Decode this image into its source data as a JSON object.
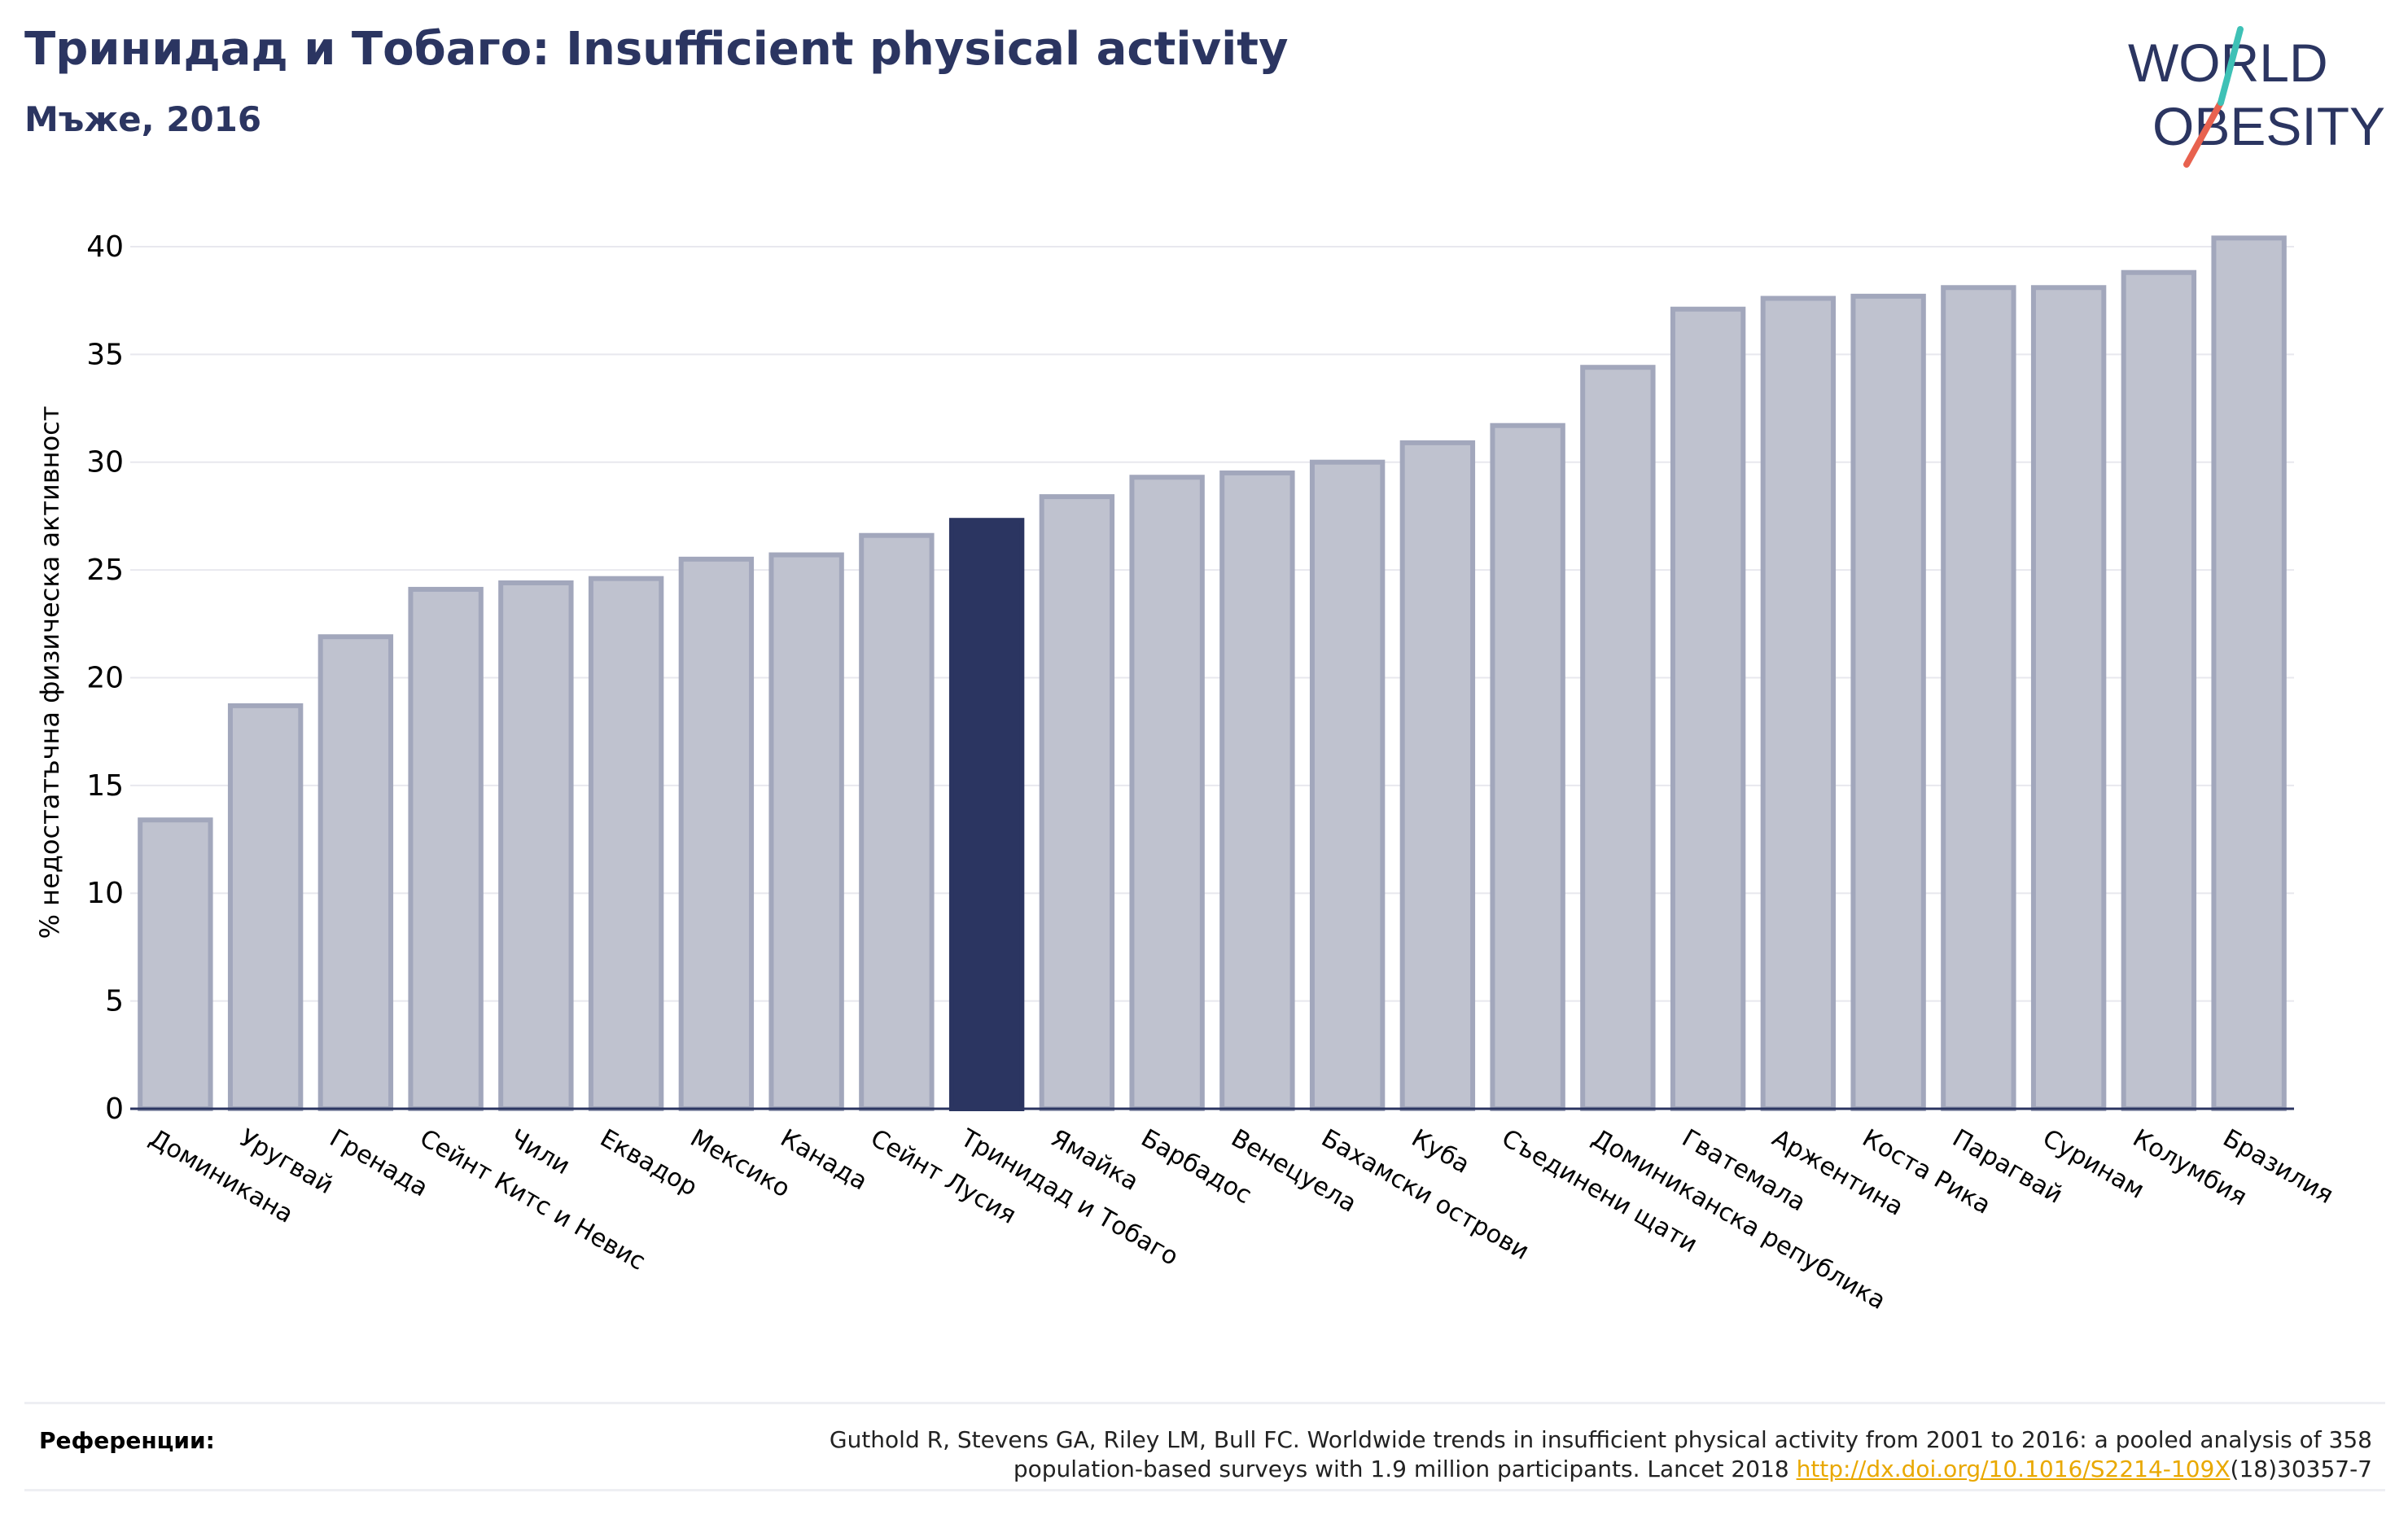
{
  "header": {
    "title": "Тринидад и Тобаго: Insufficient physical activity",
    "subtitle": "Мъже, 2016"
  },
  "logo": {
    "line1": "WORLD",
    "line2": "OBESITY",
    "slash_colors": [
      "#3ec1b6",
      "#e8624f"
    ],
    "text_color": "#2b3561"
  },
  "colors": {
    "highlight": "#2b3561",
    "bar_fill": "#bfc2cf",
    "bar_edge": "#a2a7bc",
    "axis": "#2b3561",
    "grid": "#e8e8ee"
  },
  "chart_data": {
    "type": "bar",
    "ylabel": "% недостатъчна физическа активност",
    "ylim": [
      0,
      42
    ],
    "yticks": [
      0,
      5,
      10,
      15,
      20,
      25,
      30,
      35,
      40
    ],
    "grid": true,
    "highlight": "Тринидад и Тобаго",
    "categories": [
      "Доминикана",
      "Уругвай",
      "Гренада",
      "Сейнт Китс и Невис",
      "Чили",
      "Еквадор",
      "Мексико",
      "Канада",
      "Сейнт Лусия",
      "Тринидад и Тобаго",
      "Ямайка",
      "Барбадос",
      "Венецуела",
      "Бахамски острови",
      "Куба",
      "Съединени щати",
      "Доминиканска република",
      "Гватемала",
      "Аржентина",
      "Коста Рика",
      "Парагвай",
      "Суринам",
      "Колумбия",
      "Бразилия"
    ],
    "values": [
      13.4,
      18.7,
      21.9,
      24.1,
      24.4,
      24.6,
      25.5,
      25.7,
      26.6,
      27.3,
      28.4,
      29.3,
      29.5,
      30.0,
      30.9,
      31.7,
      34.4,
      37.1,
      37.6,
      37.7,
      38.1,
      38.1,
      38.8,
      40.4
    ]
  },
  "references": {
    "label": "Референции:",
    "text_line1": "Guthold R, Stevens GA, Riley LM, Bull FC. Worldwide trends in insufficient physical activity from 2001 to 2016: a pooled analysis of 358",
    "text_line2_pre": "population-based surveys with 1.9 million participants. Lancet 2018 ",
    "link": "http://dx.doi.org/10.1016/S2214-109X",
    "text_line2_post": "(18)30357-7"
  }
}
